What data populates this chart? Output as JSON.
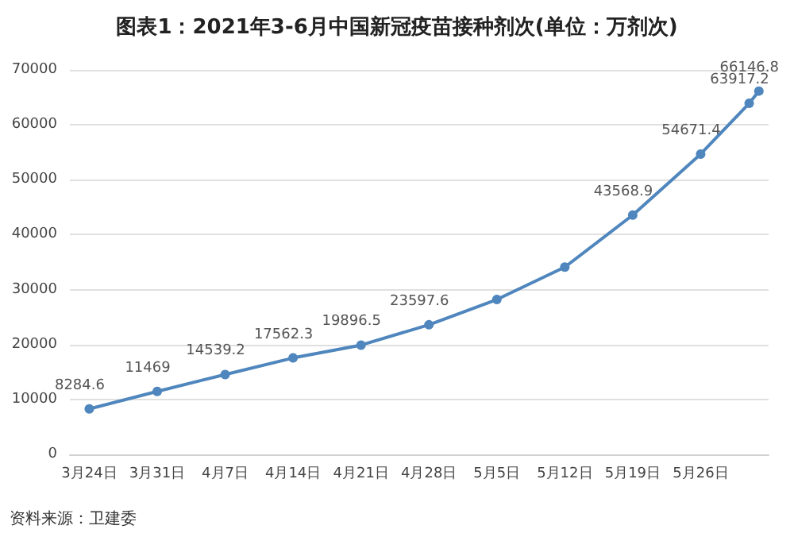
{
  "chart_data": {
    "type": "line",
    "title": "图表1：2021年3-6月中国新冠疫苗接种剂次(单位：万剂次)",
    "x": [
      "2021-03-24",
      "2021-03-31",
      "2021-04-07",
      "2021-04-14",
      "2021-04-21",
      "2021-04-28",
      "2021-05-05",
      "2021-05-12",
      "2021-05-19",
      "2021-05-26",
      "2021-05-31",
      "2021-06-01"
    ],
    "series": [
      {
        "color": "#4f86bd",
        "values": [
          8284.6,
          11469,
          14539.2,
          17562.3,
          19896.5,
          23597.6,
          28200,
          34100,
          43568.9,
          54671.4,
          63917.2,
          66146.8
        ],
        "value_labels": [
          "8284.6",
          "11469",
          "14539.2",
          "17562.3",
          "19896.5",
          "23597.6",
          null,
          null,
          "43568.9",
          "54671.4",
          "63917.2",
          "66146.8"
        ]
      }
    ],
    "xlim": [
      "2021-03-22",
      "2021-06-02"
    ],
    "xticks": [
      {
        "value": "2021-03-24",
        "label": "3月24日"
      },
      {
        "value": "2021-03-31",
        "label": "3月31日"
      },
      {
        "value": "2021-04-07",
        "label": "4月7日"
      },
      {
        "value": "2021-04-14",
        "label": "4月14日"
      },
      {
        "value": "2021-04-21",
        "label": "4月21日"
      },
      {
        "value": "2021-04-28",
        "label": "4月28日"
      },
      {
        "value": "2021-05-05",
        "label": "5月5日"
      },
      {
        "value": "2021-05-12",
        "label": "5月12日"
      },
      {
        "value": "2021-05-19",
        "label": "5月19日"
      },
      {
        "value": "2021-05-26",
        "label": "5月26日"
      }
    ],
    "ylim": [
      0,
      70000
    ],
    "yticks": [
      0,
      10000,
      20000,
      30000,
      40000,
      50000,
      60000,
      70000
    ],
    "grid": "y",
    "marker": "circle",
    "line_style": "solid",
    "annotations": [
      "资料来源：卫建委"
    ]
  }
}
